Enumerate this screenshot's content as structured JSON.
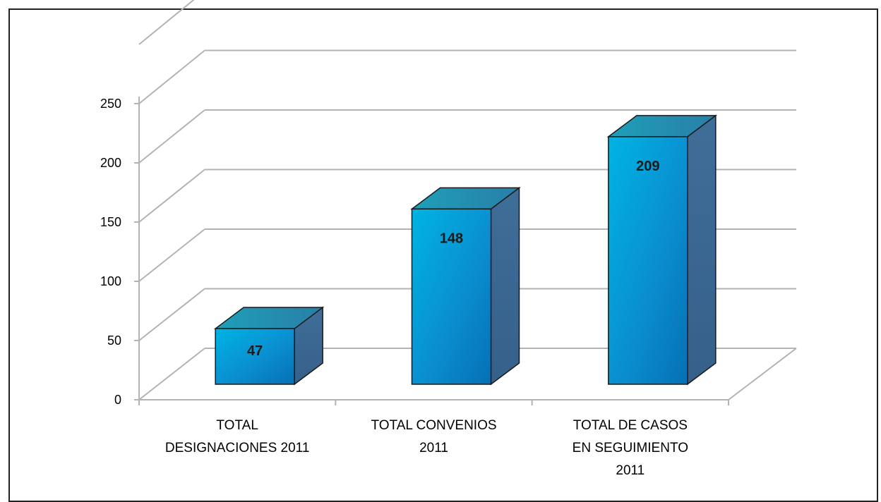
{
  "chart_data": {
    "type": "bar",
    "categories": [
      [
        "TOTAL",
        "DESIGNACIONES 2011"
      ],
      [
        "TOTAL CONVENIOS",
        "2011"
      ],
      [
        "TOTAL DE CASOS",
        "EN SEGUIMIENTO",
        "2011"
      ]
    ],
    "values": [
      47,
      148,
      209
    ],
    "data_labels": [
      "47",
      "148",
      "209"
    ],
    "ylim": [
      0,
      250
    ],
    "yticks": [
      "0",
      "50",
      "100",
      "150",
      "200",
      "250"
    ],
    "grid": true,
    "three_d": true,
    "title": "",
    "xlabel": "",
    "ylabel": ""
  },
  "colors": {
    "bar_front": "#0a8fd0",
    "bar_side": "#3a6590",
    "bar_top": "#1f8fae",
    "gridline": "#b3b3b3",
    "frame": "#222222"
  }
}
